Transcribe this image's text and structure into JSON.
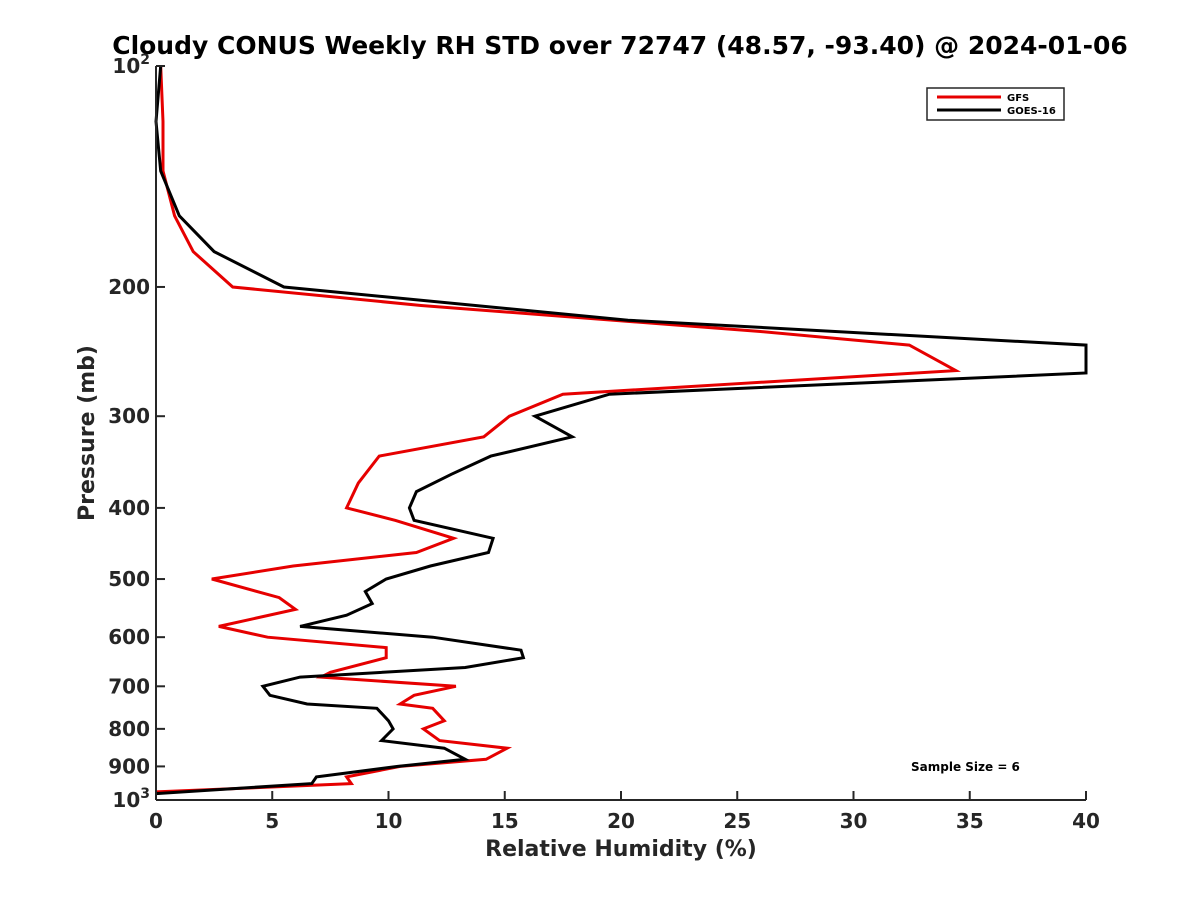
{
  "chart_data": {
    "type": "line",
    "title": "Cloudy CONUS Weekly RH STD over 72747 (48.57, -93.40) @ 2024-01-06",
    "xlabel": "Relative Humidity (%)",
    "ylabel": "Pressure (mb)",
    "xlim": [
      0,
      40
    ],
    "ylim": [
      100,
      1000
    ],
    "y_scale": "log",
    "y_reversed": true,
    "grid": false,
    "x_ticks": [
      0,
      5,
      10,
      15,
      20,
      25,
      30,
      35,
      40
    ],
    "x_tick_labels": [
      "0",
      "5",
      "10",
      "15",
      "20",
      "25",
      "30",
      "35",
      "40"
    ],
    "y_ticks": [
      100,
      200,
      300,
      400,
      500,
      600,
      700,
      800,
      900,
      1000
    ],
    "y_tick_labels": [
      {
        "base": "10",
        "exp": "2"
      },
      "200",
      "300",
      "400",
      "500",
      "600",
      "700",
      "800",
      "900",
      {
        "base": "10",
        "exp": "3"
      }
    ],
    "legend": {
      "placement": "top-right",
      "entries": [
        "GFS",
        "GOES-16"
      ]
    },
    "annotation": "Sample Size = 6",
    "series": [
      {
        "name": "GFS",
        "color": "#e60000",
        "points": [
          [
            0.2,
            100
          ],
          [
            0.3,
            119
          ],
          [
            0.3,
            139
          ],
          [
            0.8,
            160
          ],
          [
            1.6,
            179
          ],
          [
            3.3,
            200
          ],
          [
            11.4,
            212
          ],
          [
            26.0,
            230
          ],
          [
            32.4,
            240
          ],
          [
            34.4,
            260
          ],
          [
            17.5,
            280
          ],
          [
            15.2,
            300
          ],
          [
            14.1,
            320
          ],
          [
            9.6,
            340
          ],
          [
            8.7,
            370
          ],
          [
            8.2,
            400
          ],
          [
            10.3,
            416
          ],
          [
            12.8,
            440
          ],
          [
            11.2,
            460
          ],
          [
            5.9,
            480
          ],
          [
            2.4,
            500
          ],
          [
            5.3,
            530
          ],
          [
            6.0,
            550
          ],
          [
            2.7,
            580
          ],
          [
            4.8,
            600
          ],
          [
            9.9,
            620
          ],
          [
            9.9,
            640
          ],
          [
            7.5,
            670
          ],
          [
            7.1,
            680
          ],
          [
            12.9,
            700
          ],
          [
            11.1,
            720
          ],
          [
            10.5,
            740
          ],
          [
            11.9,
            750
          ],
          [
            12.4,
            780
          ],
          [
            11.5,
            800
          ],
          [
            12.2,
            830
          ],
          [
            15.1,
            850
          ],
          [
            14.2,
            880
          ],
          [
            10.5,
            900
          ],
          [
            8.2,
            930
          ],
          [
            8.4,
            950
          ],
          [
            0.0,
            975
          ]
        ]
      },
      {
        "name": "GOES-16",
        "color": "#000000",
        "points": [
          [
            0.2,
            100
          ],
          [
            0.0,
            119
          ],
          [
            0.2,
            139
          ],
          [
            1.0,
            160
          ],
          [
            2.5,
            179
          ],
          [
            5.5,
            200
          ],
          [
            20.3,
            222
          ],
          [
            40.0,
            240
          ],
          [
            40.0,
            262
          ],
          [
            19.5,
            280
          ],
          [
            16.3,
            300
          ],
          [
            17.9,
            320
          ],
          [
            14.4,
            340
          ],
          [
            12.7,
            360
          ],
          [
            11.2,
            380
          ],
          [
            10.9,
            400
          ],
          [
            11.1,
            416
          ],
          [
            14.5,
            440
          ],
          [
            14.3,
            460
          ],
          [
            11.8,
            480
          ],
          [
            9.9,
            500
          ],
          [
            9.0,
            520
          ],
          [
            9.3,
            540
          ],
          [
            8.2,
            560
          ],
          [
            6.2,
            580
          ],
          [
            11.9,
            600
          ],
          [
            15.7,
            625
          ],
          [
            15.8,
            640
          ],
          [
            13.3,
            660
          ],
          [
            6.2,
            680
          ],
          [
            4.6,
            700
          ],
          [
            4.9,
            720
          ],
          [
            6.5,
            740
          ],
          [
            9.5,
            750
          ],
          [
            10.0,
            780
          ],
          [
            10.2,
            800
          ],
          [
            9.7,
            830
          ],
          [
            12.4,
            850
          ],
          [
            13.3,
            880
          ],
          [
            10.4,
            900
          ],
          [
            6.9,
            930
          ],
          [
            6.7,
            950
          ],
          [
            0.0,
            980
          ]
        ]
      }
    ]
  }
}
